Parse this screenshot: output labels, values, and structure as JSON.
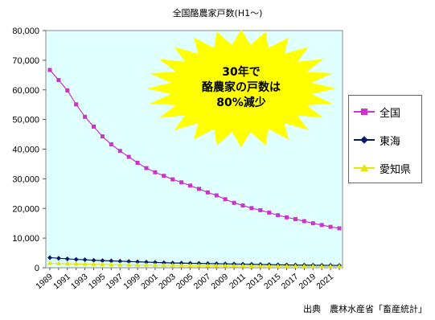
{
  "chart_data": {
    "type": "line",
    "title": "全国酪農家戸数(H1～)",
    "xlabel": "",
    "ylabel": "",
    "ylim": [
      0,
      80000
    ],
    "yticks": [
      "0",
      "10,000",
      "20,000",
      "30,000",
      "40,000",
      "50,000",
      "60,000",
      "70,000",
      "80,000"
    ],
    "grid": false,
    "legend": "right",
    "x": [
      1989,
      1990,
      1991,
      1992,
      1993,
      1994,
      1995,
      1996,
      1997,
      1998,
      1999,
      2000,
      2001,
      2002,
      2003,
      2004,
      2005,
      2006,
      2007,
      2008,
      2009,
      2010,
      2011,
      2012,
      2013,
      2014,
      2015,
      2016,
      2017,
      2018,
      2019,
      2020,
      2021,
      2022
    ],
    "xticks": [
      "1989",
      "1991",
      "1993",
      "1995",
      "1997",
      "1999",
      "2001",
      "2003",
      "2005",
      "2007",
      "2009",
      "2011",
      "2013",
      "2015",
      "2017",
      "2019",
      "2021"
    ],
    "series": [
      {
        "name": "全国",
        "color": "#cc33cc",
        "marker": "square",
        "values": [
          66700,
          63300,
          59800,
          55100,
          50900,
          47600,
          44300,
          41600,
          39400,
          37400,
          35400,
          33600,
          32200,
          31000,
          29800,
          28800,
          27700,
          26600,
          25400,
          24400,
          23100,
          21900,
          21000,
          20100,
          19400,
          18600,
          17700,
          17000,
          16400,
          15700,
          15000,
          14400,
          13800,
          13300
        ]
      },
      {
        "name": "東海",
        "color": "#001a66",
        "marker": "diamond",
        "values": [
          3400,
          3200,
          3000,
          2800,
          2700,
          2500,
          2400,
          2300,
          2200,
          2100,
          2000,
          1900,
          1800,
          1700,
          1600,
          1550,
          1500,
          1450,
          1400,
          1350,
          1300,
          1250,
          1200,
          1150,
          1100,
          1050,
          1000,
          950,
          900,
          880,
          850,
          820,
          800,
          780
        ]
      },
      {
        "name": "愛知県",
        "color": "#e6e600",
        "marker": "triangle",
        "values": [
          1500,
          1400,
          1300,
          1250,
          1200,
          1150,
          1100,
          1050,
          1000,
          950,
          900,
          870,
          840,
          810,
          780,
          750,
          720,
          700,
          680,
          660,
          640,
          620,
          600,
          580,
          560,
          540,
          520,
          500,
          480,
          470,
          460,
          450,
          440,
          430
        ]
      }
    ],
    "annotation": [
      "30年で",
      "酪農家の戸数は",
      "80%減少"
    ],
    "annotation_fill": "#ffff00"
  },
  "source": "出典　農林水産省「畜産統計」"
}
